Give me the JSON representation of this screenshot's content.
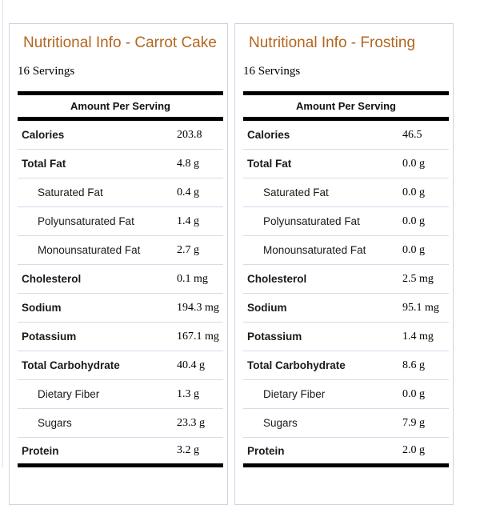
{
  "colors": {
    "accent": "#b2661e",
    "bar": "#000000",
    "separator": "#d9d9ec",
    "panel_border": "#d0d0e4"
  },
  "panels": [
    {
      "title": "Nutritional Info - Carrot Cake",
      "servings": "16 Servings",
      "table_header": "Amount Per Serving",
      "rows": [
        {
          "label": "Calories",
          "value": "203.8",
          "bold": true,
          "indent": false
        },
        {
          "label": "Total Fat",
          "value": "4.8 g",
          "bold": true,
          "indent": false
        },
        {
          "label": "Saturated Fat",
          "value": "0.4 g",
          "bold": false,
          "indent": true
        },
        {
          "label": "Polyunsaturated Fat",
          "value": "1.4 g",
          "bold": false,
          "indent": true
        },
        {
          "label": "Monounsaturated Fat",
          "value": "2.7 g",
          "bold": false,
          "indent": true
        },
        {
          "label": "Cholesterol",
          "value": "0.1 mg",
          "bold": true,
          "indent": false
        },
        {
          "label": "Sodium",
          "value": "194.3 mg",
          "bold": true,
          "indent": false
        },
        {
          "label": "Potassium",
          "value": "167.1 mg",
          "bold": true,
          "indent": false
        },
        {
          "label": "Total Carbohydrate",
          "value": "40.4 g",
          "bold": true,
          "indent": false
        },
        {
          "label": "Dietary Fiber",
          "value": "1.3 g",
          "bold": false,
          "indent": true
        },
        {
          "label": "Sugars",
          "value": "23.3 g",
          "bold": false,
          "indent": true
        },
        {
          "label": "Protein",
          "value": "3.2 g",
          "bold": true,
          "indent": false
        }
      ]
    },
    {
      "title": "Nutritional Info - Frosting",
      "servings": "16 Servings",
      "table_header": "Amount Per Serving",
      "rows": [
        {
          "label": "Calories",
          "value": "46.5",
          "bold": true,
          "indent": false
        },
        {
          "label": "Total Fat",
          "value": "0.0 g",
          "bold": true,
          "indent": false
        },
        {
          "label": "Saturated Fat",
          "value": "0.0 g",
          "bold": false,
          "indent": true
        },
        {
          "label": "Polyunsaturated Fat",
          "value": "0.0 g",
          "bold": false,
          "indent": true
        },
        {
          "label": "Monounsaturated Fat",
          "value": "0.0 g",
          "bold": false,
          "indent": true
        },
        {
          "label": "Cholesterol",
          "value": "2.5 mg",
          "bold": true,
          "indent": false
        },
        {
          "label": "Sodium",
          "value": "95.1 mg",
          "bold": true,
          "indent": false
        },
        {
          "label": "Potassium",
          "value": "1.4 mg",
          "bold": true,
          "indent": false
        },
        {
          "label": "Total Carbohydrate",
          "value": "8.6 g",
          "bold": true,
          "indent": false
        },
        {
          "label": "Dietary Fiber",
          "value": "0.0 g",
          "bold": false,
          "indent": true
        },
        {
          "label": "Sugars",
          "value": "7.9 g",
          "bold": false,
          "indent": true
        },
        {
          "label": "Protein",
          "value": "2.0 g",
          "bold": true,
          "indent": false
        }
      ]
    }
  ]
}
